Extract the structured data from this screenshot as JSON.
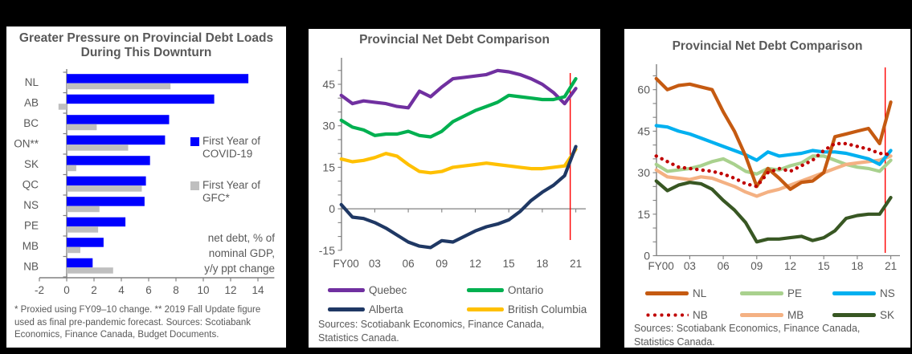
{
  "panels": {
    "left": {
      "footnote": "* Proxied using FY09–10 change. ** 2019 Fall Update figure used as final pre-pandemic forecast. Sources: Scotiabank Economics, Finance Canada, Budget Documents."
    },
    "middle": {
      "sources": "Sources: Scotiabank Economics, Finance Canada, Statistics Canada."
    },
    "right": {
      "sources": "Sources: Scotiabank Economics, Finance Canada, Statistics Canada."
    }
  },
  "chart_data": [
    {
      "type": "bar",
      "orientation": "horizontal",
      "title": "Greater Pressure on Provincial Debt Loads During This Downturn",
      "annotation": "net debt, % of nominal GDP, y/y ppt change",
      "categories": [
        "NL",
        "AB",
        "BC",
        "ON**",
        "SK",
        "QC",
        "NS",
        "PE",
        "MB",
        "NB"
      ],
      "xlim": [
        -2,
        15
      ],
      "xticks": [
        -2,
        0,
        2,
        4,
        6,
        8,
        10,
        12,
        14
      ],
      "series": [
        {
          "name": "First Year of COVID-19",
          "color": "#0000FF",
          "values": [
            13.3,
            10.8,
            7.5,
            7.2,
            6.1,
            5.8,
            5.7,
            4.3,
            2.7,
            1.9
          ]
        },
        {
          "name": "First Year of GFC*",
          "color": "#BFBFBF",
          "values": [
            7.6,
            -0.6,
            2.2,
            4.5,
            0.7,
            5.5,
            2.4,
            2.3,
            1.0,
            3.4
          ]
        }
      ]
    },
    {
      "type": "line",
      "title": "Provincial Net Debt Comparison",
      "x_start_fiscal_year": "FY00",
      "xticks": [
        0,
        3,
        6,
        9,
        12,
        15,
        18,
        21
      ],
      "xtick_labels": [
        "FY00",
        "03",
        "06",
        "09",
        "12",
        "15",
        "18",
        "21"
      ],
      "yticks": [
        45,
        30,
        15,
        0,
        -15
      ],
      "ylim": [
        -16,
        55
      ],
      "red_line_x": 20.5,
      "grid": "zero-line-only",
      "legend_position": "bottom",
      "series": [
        {
          "name": "Quebec",
          "color": "#7030A0",
          "values": [
            41,
            38,
            39,
            38.5,
            38,
            37,
            36.5,
            42.5,
            40.5,
            44,
            47,
            47.5,
            48,
            48.5,
            50,
            49.5,
            48.5,
            47,
            45,
            42,
            38,
            43.5
          ]
        },
        {
          "name": "Ontario",
          "color": "#00B050",
          "values": [
            32,
            29.5,
            28.5,
            26.5,
            27,
            27,
            28,
            26.5,
            26,
            28,
            31.5,
            33.5,
            35.5,
            37,
            38.5,
            41,
            40.5,
            40,
            39.5,
            39.5,
            40.5,
            47
          ]
        },
        {
          "name": "Alberta",
          "color": "#1F3864",
          "values": [
            1.5,
            -3,
            -3.5,
            -5,
            -7,
            -9.5,
            -12,
            -13.5,
            -14,
            -11.5,
            -12,
            -10,
            -8,
            -6.5,
            -5.5,
            -4,
            -1,
            3,
            6,
            8.5,
            12,
            22.5
          ]
        },
        {
          "name": "British Columbia",
          "color": "#FFC000",
          "values": [
            18,
            17,
            17.5,
            18.5,
            20,
            19,
            16,
            13.5,
            13,
            13.5,
            15,
            15.5,
            16,
            16.5,
            16,
            15.5,
            15,
            14.5,
            14.5,
            15,
            15.5,
            21.5
          ]
        }
      ]
    },
    {
      "type": "line",
      "title": "Provincial Net Debt Comparison",
      "x_start_fiscal_year": "FY00",
      "xticks": [
        0,
        3,
        6,
        9,
        12,
        15,
        18,
        21
      ],
      "xtick_labels": [
        "FY00",
        "03",
        "06",
        "09",
        "12",
        "15",
        "18",
        "21"
      ],
      "yticks": [
        60,
        45,
        30,
        15,
        0
      ],
      "ylim": [
        0,
        67
      ],
      "red_line_x": 20.5,
      "grid": "zero-line-only",
      "legend_position": "bottom",
      "series": [
        {
          "name": "NL",
          "color": "#C55A11",
          "values": [
            64,
            60,
            61.5,
            62,
            61,
            60,
            52,
            45,
            36,
            25,
            31.5,
            28,
            24,
            26.5,
            27,
            30,
            43,
            44,
            45,
            46,
            40.5,
            55.5
          ]
        },
        {
          "name": "PE",
          "color": "#A9D18E",
          "values": [
            33,
            30.5,
            31,
            31.5,
            32.5,
            34,
            35,
            33,
            30.5,
            29.5,
            31.5,
            31,
            32.5,
            33.5,
            36,
            36,
            34.5,
            33,
            32,
            31.5,
            30.5,
            34.5
          ]
        },
        {
          "name": "NS",
          "color": "#00B0F0",
          "values": [
            47,
            46.5,
            45,
            44,
            42.5,
            41,
            39.5,
            38,
            36.5,
            34.5,
            37.5,
            36,
            36.5,
            37,
            38,
            37.5,
            37.5,
            37,
            36,
            35,
            33,
            38
          ]
        },
        {
          "name": "NB",
          "color": "#C00000",
          "dotted": true,
          "values": [
            36,
            34,
            32,
            31.5,
            31,
            30.5,
            29.5,
            28,
            26,
            25,
            30,
            31.5,
            30.5,
            32.5,
            34.5,
            38,
            40.5,
            40.5,
            39.5,
            38.5,
            37,
            36.5
          ]
        },
        {
          "name": "MB",
          "color": "#F4B183",
          "values": [
            31,
            28.5,
            28,
            27.5,
            28.5,
            28,
            26.5,
            25,
            23,
            21.5,
            23,
            24,
            25.5,
            27,
            28.5,
            30,
            31.5,
            33,
            33.5,
            34,
            34.5,
            36
          ]
        },
        {
          "name": "SK",
          "color": "#385723",
          "values": [
            27,
            23.5,
            25.5,
            26.5,
            26,
            24,
            20,
            16.5,
            12,
            5,
            6,
            6,
            6.5,
            7,
            5.5,
            6.5,
            9,
            13.5,
            14.5,
            15,
            15,
            21
          ]
        }
      ]
    }
  ]
}
